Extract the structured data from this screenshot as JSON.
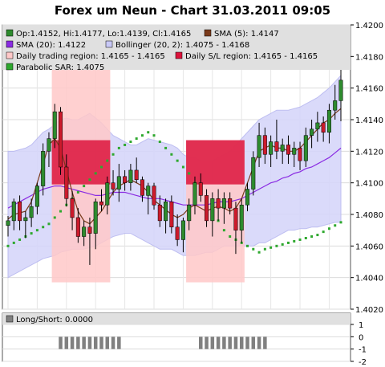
{
  "title": "Forex um Neun - Chart 31.03.2011 09:05",
  "legend": {
    "ohlc": "Op:1.4152, Hi:1.4177, Lo:1.4139, Cl:1.4165",
    "sma5": "SMA (5): 1.4147",
    "sma20": "SMA (20): 1.4122",
    "bollinger": "Bollinger (20, 2): 1.4075 - 1.4168",
    "daily_region": "Daily trading region: 1.4165 - 1.4165",
    "daily_sl": "Daily S/L region: 1.4165 - 1.4165",
    "sar": "Parabolic SAR: 1.4075",
    "longshort": "Long/Short: 0.0000"
  },
  "colors": {
    "up": "#2e8b2e",
    "down": "#cc1b2c",
    "sma5": "#7a3a1a",
    "sma20": "#8a2be2",
    "bollinger_fill": "#d6d6fa",
    "sar": "#2ea82e",
    "region_light": "#ffc8c8",
    "region_dark": "#dc143c",
    "bars": "#808080"
  },
  "chart_data": {
    "type": "candlestick",
    "title": "Forex um Neun - Chart 31.03.2011 09:05",
    "price_axis": {
      "ylim": [
        1.402,
        1.42
      ],
      "ticks": [
        "1.4020",
        "1.4040",
        "1.4060",
        "1.4080",
        "1.4100",
        "1.4120",
        "1.4140",
        "1.4160",
        "1.4180",
        "1.4200"
      ]
    },
    "indicator_axis": {
      "ylim": [
        -2,
        1
      ],
      "ticks": [
        "1",
        "0",
        "-1",
        "-2"
      ]
    },
    "candles": [
      {
        "o": 1.4073,
        "h": 1.4079,
        "l": 1.4066,
        "c": 1.4076
      },
      {
        "o": 1.4076,
        "h": 1.409,
        "l": 1.407,
        "c": 1.4088
      },
      {
        "o": 1.4088,
        "h": 1.4092,
        "l": 1.407,
        "c": 1.4076
      },
      {
        "o": 1.4076,
        "h": 1.4082,
        "l": 1.4065,
        "c": 1.4078
      },
      {
        "o": 1.4078,
        "h": 1.409,
        "l": 1.4072,
        "c": 1.4085
      },
      {
        "o": 1.4085,
        "h": 1.41,
        "l": 1.408,
        "c": 1.4098
      },
      {
        "o": 1.4098,
        "h": 1.4125,
        "l": 1.4092,
        "c": 1.412
      },
      {
        "o": 1.412,
        "h": 1.4132,
        "l": 1.411,
        "c": 1.4128
      },
      {
        "o": 1.4128,
        "h": 1.415,
        "l": 1.4122,
        "c": 1.4145
      },
      {
        "o": 1.4145,
        "h": 1.4148,
        "l": 1.4105,
        "c": 1.411
      },
      {
        "o": 1.411,
        "h": 1.4118,
        "l": 1.4085,
        "c": 1.409
      },
      {
        "o": 1.409,
        "h": 1.4095,
        "l": 1.407,
        "c": 1.4078
      },
      {
        "o": 1.4078,
        "h": 1.4084,
        "l": 1.4062,
        "c": 1.4066
      },
      {
        "o": 1.4066,
        "h": 1.4076,
        "l": 1.406,
        "c": 1.4072
      },
      {
        "o": 1.4072,
        "h": 1.4078,
        "l": 1.4048,
        "c": 1.4068
      },
      {
        "o": 1.4068,
        "h": 1.409,
        "l": 1.4058,
        "c": 1.4088
      },
      {
        "o": 1.4088,
        "h": 1.4096,
        "l": 1.4082,
        "c": 1.4086
      },
      {
        "o": 1.4086,
        "h": 1.4104,
        "l": 1.408,
        "c": 1.41
      },
      {
        "o": 1.41,
        "h": 1.4108,
        "l": 1.4092,
        "c": 1.4096
      },
      {
        "o": 1.4096,
        "h": 1.4112,
        "l": 1.4088,
        "c": 1.4104
      },
      {
        "o": 1.4104,
        "h": 1.4108,
        "l": 1.4095,
        "c": 1.41
      },
      {
        "o": 1.41,
        "h": 1.4112,
        "l": 1.4095,
        "c": 1.4108
      },
      {
        "o": 1.4108,
        "h": 1.4116,
        "l": 1.41,
        "c": 1.4102
      },
      {
        "o": 1.4102,
        "h": 1.4104,
        "l": 1.4088,
        "c": 1.4092
      },
      {
        "o": 1.4092,
        "h": 1.41,
        "l": 1.408,
        "c": 1.4098
      },
      {
        "o": 1.4098,
        "h": 1.41,
        "l": 1.4083,
        "c": 1.4086
      },
      {
        "o": 1.4086,
        "h": 1.4092,
        "l": 1.4072,
        "c": 1.4076
      },
      {
        "o": 1.4076,
        "h": 1.409,
        "l": 1.4068,
        "c": 1.4088
      },
      {
        "o": 1.4088,
        "h": 1.4092,
        "l": 1.4068,
        "c": 1.4072
      },
      {
        "o": 1.4072,
        "h": 1.408,
        "l": 1.406,
        "c": 1.4064
      },
      {
        "o": 1.4064,
        "h": 1.4078,
        "l": 1.4056,
        "c": 1.4076
      },
      {
        "o": 1.4076,
        "h": 1.409,
        "l": 1.407,
        "c": 1.4086
      },
      {
        "o": 1.4086,
        "h": 1.4104,
        "l": 1.408,
        "c": 1.41
      },
      {
        "o": 1.41,
        "h": 1.4106,
        "l": 1.4088,
        "c": 1.4092
      },
      {
        "o": 1.4092,
        "h": 1.4096,
        "l": 1.4072,
        "c": 1.4076
      },
      {
        "o": 1.4076,
        "h": 1.4094,
        "l": 1.4066,
        "c": 1.409
      },
      {
        "o": 1.409,
        "h": 1.4096,
        "l": 1.4076,
        "c": 1.4084
      },
      {
        "o": 1.4084,
        "h": 1.4094,
        "l": 1.4074,
        "c": 1.409
      },
      {
        "o": 1.409,
        "h": 1.4094,
        "l": 1.408,
        "c": 1.4084
      },
      {
        "o": 1.4084,
        "h": 1.4088,
        "l": 1.4055,
        "c": 1.407
      },
      {
        "o": 1.407,
        "h": 1.409,
        "l": 1.4062,
        "c": 1.4086
      },
      {
        "o": 1.4086,
        "h": 1.41,
        "l": 1.4082,
        "c": 1.4096
      },
      {
        "o": 1.4096,
        "h": 1.412,
        "l": 1.4092,
        "c": 1.4116
      },
      {
        "o": 1.4116,
        "h": 1.4138,
        "l": 1.411,
        "c": 1.413
      },
      {
        "o": 1.413,
        "h": 1.4135,
        "l": 1.4112,
        "c": 1.4118
      },
      {
        "o": 1.4118,
        "h": 1.413,
        "l": 1.411,
        "c": 1.4126
      },
      {
        "o": 1.4126,
        "h": 1.414,
        "l": 1.4115,
        "c": 1.412
      },
      {
        "o": 1.412,
        "h": 1.4128,
        "l": 1.4112,
        "c": 1.4124
      },
      {
        "o": 1.4124,
        "h": 1.413,
        "l": 1.4112,
        "c": 1.4118
      },
      {
        "o": 1.4118,
        "h": 1.4126,
        "l": 1.411,
        "c": 1.4122
      },
      {
        "o": 1.4122,
        "h": 1.4126,
        "l": 1.4108,
        "c": 1.4114
      },
      {
        "o": 1.4114,
        "h": 1.4135,
        "l": 1.411,
        "c": 1.413
      },
      {
        "o": 1.413,
        "h": 1.414,
        "l": 1.4122,
        "c": 1.4134
      },
      {
        "o": 1.4134,
        "h": 1.4145,
        "l": 1.4126,
        "c": 1.4138
      },
      {
        "o": 1.4138,
        "h": 1.4142,
        "l": 1.4126,
        "c": 1.4132
      },
      {
        "o": 1.4132,
        "h": 1.415,
        "l": 1.4125,
        "c": 1.4146
      },
      {
        "o": 1.4146,
        "h": 1.4162,
        "l": 1.414,
        "c": 1.4152
      },
      {
        "o": 1.4152,
        "h": 1.4177,
        "l": 1.4139,
        "c": 1.4165
      }
    ],
    "sma5": [
      1.4077,
      1.408,
      1.4081,
      1.4082,
      1.4088,
      1.41,
      1.4112,
      1.4124,
      1.4128,
      1.4122,
      1.4108,
      1.4094,
      1.4082,
      1.4076,
      1.4074,
      1.4078,
      1.4082,
      1.4088,
      1.4094,
      1.4098,
      1.41,
      1.4102,
      1.41,
      1.4098,
      1.4094,
      1.4089,
      1.4086,
      1.4083,
      1.408,
      1.4078,
      1.408,
      1.4084,
      1.4086,
      1.4084,
      1.4082,
      1.4084,
      1.4085,
      1.4084,
      1.4082,
      1.4084,
      1.409,
      1.41,
      1.411,
      1.412,
      1.4122,
      1.4124,
      1.4122,
      1.4122,
      1.412,
      1.412,
      1.4122,
      1.4126,
      1.413,
      1.4134,
      1.4138,
      1.414,
      1.4144,
      1.4147
    ],
    "sma20": [
      1.4084,
      1.4086,
      1.4088,
      1.409,
      1.4092,
      1.4094,
      1.4096,
      1.4097,
      1.4098,
      1.4098,
      1.4097,
      1.4096,
      1.4095,
      1.4094,
      1.4093,
      1.4092,
      1.4092,
      1.4093,
      1.4094,
      1.4094,
      1.4094,
      1.4093,
      1.4092,
      1.4091,
      1.409,
      1.409,
      1.409,
      1.4089,
      1.4088,
      1.4087,
      1.4086,
      1.4086,
      1.4086,
      1.4086,
      1.4086,
      1.4087,
      1.4088,
      1.4088,
      1.4088,
      1.4089,
      1.409,
      1.4092,
      1.4094,
      1.4096,
      1.4098,
      1.41,
      1.4101,
      1.4103,
      1.4104,
      1.4106,
      1.4107,
      1.4109,
      1.411,
      1.4112,
      1.4114,
      1.4116,
      1.4119,
      1.4122
    ],
    "bollinger_upper": [
      1.412,
      1.412,
      1.4121,
      1.4122,
      1.4124,
      1.4128,
      1.4132,
      1.4134,
      1.4137,
      1.414,
      1.4141,
      1.414,
      1.414,
      1.4142,
      1.4144,
      1.4141,
      1.4138,
      1.4134,
      1.413,
      1.4128,
      1.4126,
      1.4124,
      1.4124,
      1.4126,
      1.4128,
      1.4127,
      1.4126,
      1.4125,
      1.4124,
      1.4122,
      1.4118,
      1.4116,
      1.4116,
      1.4114,
      1.4114,
      1.4114,
      1.4116,
      1.4118,
      1.412,
      1.4124,
      1.4128,
      1.4132,
      1.4136,
      1.414,
      1.4142,
      1.4144,
      1.4146,
      1.4146,
      1.4146,
      1.4147,
      1.4148,
      1.415,
      1.4152,
      1.4154,
      1.4157,
      1.416,
      1.4164,
      1.4168
    ],
    "bollinger_lower": [
      1.404,
      1.4042,
      1.4044,
      1.4046,
      1.4048,
      1.405,
      1.4052,
      1.4053,
      1.4054,
      1.4056,
      1.4057,
      1.4058,
      1.4058,
      1.4058,
      1.4059,
      1.406,
      1.4062,
      1.4064,
      1.4066,
      1.4067,
      1.4068,
      1.4068,
      1.4066,
      1.4064,
      1.4062,
      1.406,
      1.4058,
      1.4058,
      1.4058,
      1.4056,
      1.4054,
      1.4054,
      1.4054,
      1.4055,
      1.4056,
      1.4056,
      1.4058,
      1.406,
      1.406,
      1.406,
      1.406,
      1.406,
      1.406,
      1.4062,
      1.4062,
      1.4064,
      1.4066,
      1.4068,
      1.407,
      1.407,
      1.4071,
      1.4071,
      1.4072,
      1.4072,
      1.4073,
      1.4074,
      1.4075,
      1.4075
    ],
    "sar": [
      1.406,
      1.4062,
      1.4064,
      1.4066,
      1.4068,
      1.407,
      1.4072,
      1.4074,
      1.4078,
      1.4082,
      1.4086,
      1.409,
      1.4094,
      1.4098,
      1.4102,
      1.4106,
      1.411,
      1.4114,
      1.4118,
      1.4122,
      1.4124,
      1.4126,
      1.4128,
      1.413,
      1.4132,
      1.413,
      1.4126,
      1.4122,
      1.4118,
      1.4114,
      1.411,
      1.4106,
      1.41,
      1.4094,
      1.4088,
      1.4082,
      1.4076,
      1.407,
      1.4066,
      1.4064,
      1.4062,
      1.406,
      1.4058,
      1.4056,
      1.4058,
      1.4059,
      1.406,
      1.4061,
      1.4062,
      1.4063,
      1.4064,
      1.4065,
      1.4066,
      1.4067,
      1.4069,
      1.4071,
      1.4073,
      1.4075
    ],
    "trading_regions": [
      {
        "from": 8,
        "to": 18,
        "low": 1.4037,
        "high": 1.4187
      },
      {
        "from": 31,
        "to": 41,
        "low": 1.4037,
        "high": 1.4127
      }
    ],
    "sl_regions": [
      {
        "from": 8,
        "to": 18,
        "low": 1.4099,
        "high": 1.4127
      },
      {
        "from": 31,
        "to": 41,
        "low": 1.4099,
        "high": 1.4127
      }
    ],
    "longshort_bars": [
      {
        "from": 9,
        "to": 19,
        "value": -1
      },
      {
        "from": 33,
        "to": 44,
        "value": -1
      }
    ]
  }
}
